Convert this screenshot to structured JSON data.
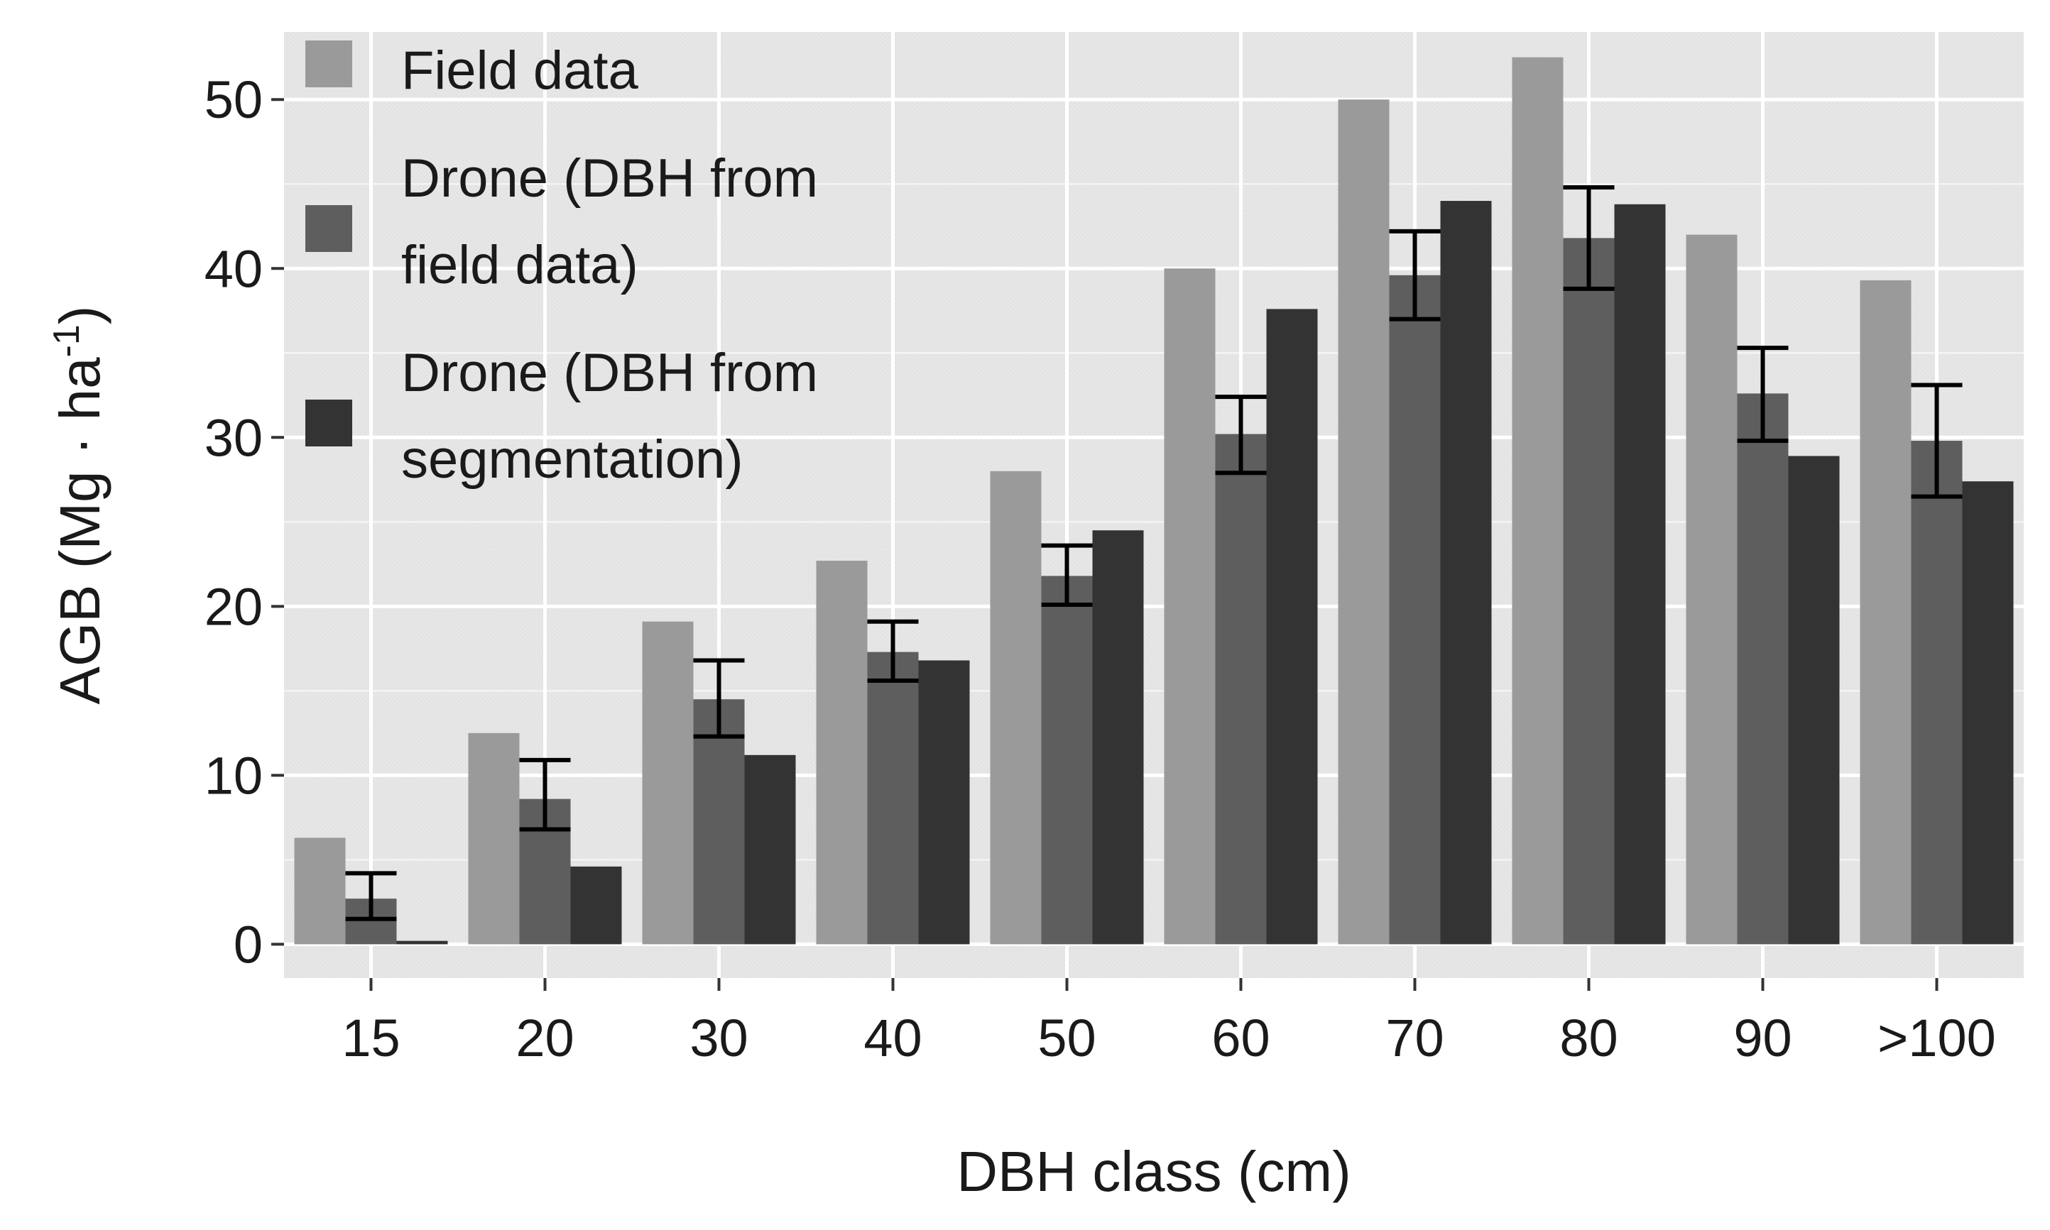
{
  "chart_data": {
    "type": "bar",
    "title": "",
    "xlabel": "DBH class (cm)",
    "ylabel": "AGB (Mg · ha",
    "ylabel_sup": "-1",
    "ylabel_close": ")",
    "categories": [
      "15",
      "20",
      "30",
      "40",
      "50",
      "60",
      "70",
      "80",
      "90",
      ">100"
    ],
    "ylim": [
      -2.0,
      54.0
    ],
    "yticks": [
      0,
      10,
      20,
      30,
      40,
      50
    ],
    "grid": true,
    "legend_position": "top-left-inside",
    "series": [
      {
        "name": "Field data",
        "legend_lines": [
          "Field data"
        ],
        "color": "#9a9a9a",
        "values": [
          6.3,
          12.5,
          19.1,
          22.7,
          28.0,
          40.0,
          50.0,
          52.5,
          42.0,
          39.3
        ]
      },
      {
        "name": "Drone (DBH from field data)",
        "legend_lines": [
          "Drone (DBH from",
          "field data)"
        ],
        "color": "#5e5e5e",
        "values": [
          2.7,
          8.6,
          14.5,
          17.3,
          21.8,
          30.2,
          39.6,
          41.8,
          32.6,
          29.8
        ],
        "error_low": [
          1.5,
          6.8,
          12.3,
          15.6,
          20.1,
          27.9,
          37.0,
          38.8,
          29.8,
          26.5
        ],
        "error_high": [
          4.2,
          10.9,
          16.8,
          19.1,
          23.6,
          32.4,
          42.2,
          44.8,
          35.3,
          33.1
        ]
      },
      {
        "name": "Drone (DBH from segmentation)",
        "legend_lines": [
          "Drone (DBH from",
          "segmentation)"
        ],
        "color": "#333333",
        "values": [
          0.2,
          4.6,
          11.2,
          16.8,
          24.5,
          37.6,
          44.0,
          43.8,
          28.9,
          27.4
        ]
      }
    ]
  }
}
